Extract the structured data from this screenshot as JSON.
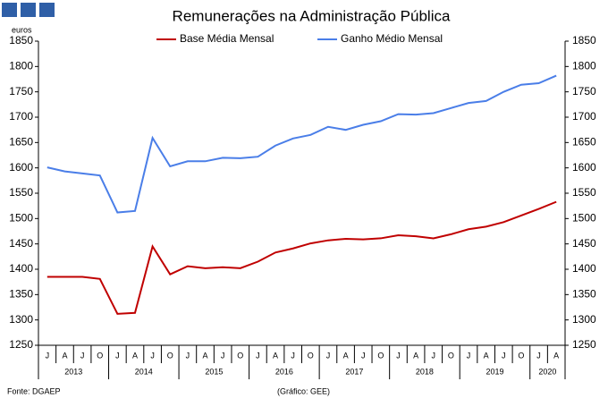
{
  "chart_data": {
    "type": "line",
    "title": "Remunerações na Administração Pública",
    "y_unit_label": "euros",
    "categories": [
      "J",
      "A",
      "J",
      "O",
      "J",
      "A",
      "J",
      "O",
      "J",
      "A",
      "J",
      "O",
      "J",
      "A",
      "J",
      "O",
      "J",
      "A",
      "J",
      "O",
      "J",
      "A",
      "J",
      "O",
      "J",
      "A",
      "J",
      "O",
      "J",
      "A"
    ],
    "years": [
      "2013",
      "2014",
      "2015",
      "2016",
      "2017",
      "2018",
      "2019",
      "2020"
    ],
    "series": [
      {
        "name": "Base Média Mensal",
        "color": "#c00000",
        "values": [
          1385,
          1385,
          1385,
          1381,
          1312,
          1314,
          1445,
          1390,
          1406,
          1402,
          1404,
          1402,
          1415,
          1433,
          1441,
          1451,
          1457,
          1460,
          1459,
          1461,
          1467,
          1465,
          1461,
          1469,
          1479,
          1484,
          1493,
          1506,
          1519,
          1533
        ]
      },
      {
        "name": "Ganho Médio Mensal",
        "color": "#4a7ee8",
        "values": [
          1601,
          1593,
          1589,
          1585,
          1512,
          1515,
          1659,
          1603,
          1613,
          1613,
          1620,
          1619,
          1622,
          1644,
          1658,
          1665,
          1681,
          1675,
          1685,
          1692,
          1706,
          1705,
          1708,
          1718,
          1728,
          1732,
          1750,
          1764,
          1767,
          1782
        ]
      }
    ],
    "ylim": [
      1250,
      1850
    ],
    "yticks": [
      1250,
      1300,
      1350,
      1400,
      1450,
      1500,
      1550,
      1600,
      1650,
      1700,
      1750,
      1800,
      1850
    ],
    "source": "Fonte: DGAEP",
    "credit": "(Gráfico: GEE)"
  }
}
